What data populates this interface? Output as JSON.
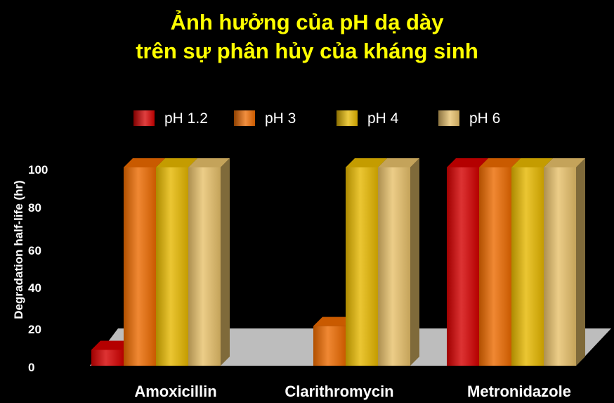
{
  "chart_data": {
    "type": "bar",
    "title_line1": "Ảnh hưởng của pH dạ dày",
    "title_line2": "trên sự phân hủy của kháng sinh",
    "xlabel": "",
    "ylabel": "Degradation half-life (hr)",
    "ytick_labels": [
      "100",
      "80",
      "60",
      "40",
      "20",
      "0"
    ],
    "categories": [
      "Amoxicillin",
      "Clarithromycin",
      "Metronidazole"
    ],
    "series": [
      {
        "name": "pH 1.2",
        "color": "#d40000",
        "values": [
          8,
          0,
          100
        ]
      },
      {
        "name": "pH 3",
        "color": "#ec6a00",
        "values": [
          100,
          20,
          100
        ]
      },
      {
        "name": "pH 4",
        "color": "#e6b800",
        "values": [
          100,
          100,
          100
        ]
      },
      {
        "name": "pH 6",
        "color": "#e7c06a",
        "values": [
          100,
          100,
          100
        ]
      }
    ],
    "legend_position": "top",
    "grid": false,
    "ylim": [
      0,
      100
    ]
  }
}
